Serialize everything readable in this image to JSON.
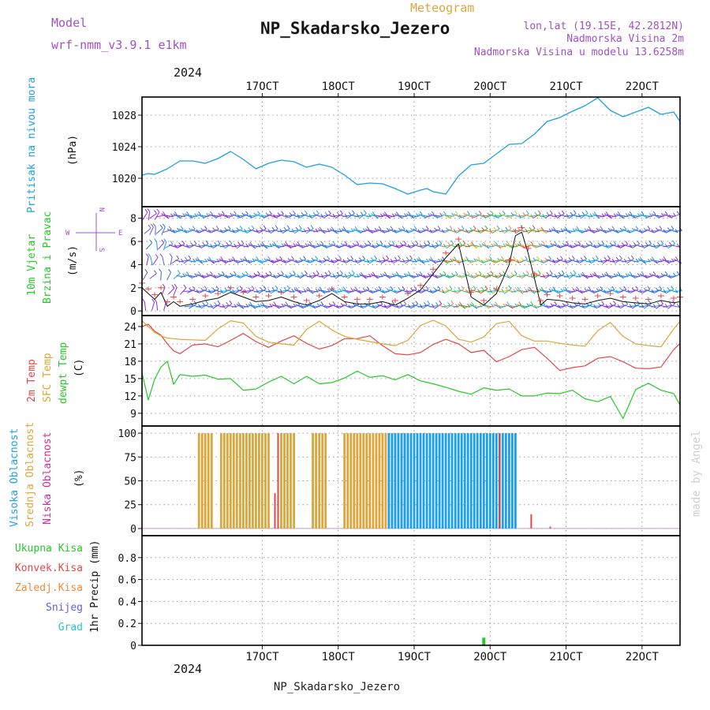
{
  "header": {
    "model_label": "Model",
    "model_value": "wrf-nmm_v3.9.1  e1km",
    "meteogram_label": "Meteogram",
    "station_title": "NP_Skadarsko_Jezero",
    "lonlat": "lon,lat (19.15E, 42.2812N)",
    "altitude": "Nadmorska Visina 2m",
    "model_altitude": "Nadmorska Visina u modelu 13.6258m",
    "year_top": "2024",
    "year_bottom": "2024",
    "station_footer": "NP_Skadarsko_Jezero",
    "watermark": "made by Angel"
  },
  "legend": {
    "pressure_title": "Pritisak na nivou mora",
    "pressure_unit": "(hPa)",
    "wind_title_1": "10m Vjetar",
    "wind_title_2": "Brzina i Pravac",
    "wind_unit": "(m/s)",
    "compass": {
      "w": "W",
      "e": "E",
      "n": "N",
      "s": "S"
    },
    "temp_2m": "2m Temp",
    "temp_sfc": "SFC Temp",
    "temp_dew": "dewpt Temp",
    "temp_unit": "(C)",
    "cloud_high": "Visoka Oblacnost",
    "cloud_mid": "Srednja Oblacnost",
    "cloud_low": "Niska Oblacnost",
    "cloud_unit": "(%)",
    "precip_total": "Ukupna Kisa",
    "precip_conv": "Konvek.Kisa",
    "precip_frz": "Zaledj.Kisa",
    "precip_snow": "Snijeg",
    "precip_grad": "Grad",
    "precip_unit": "1hr Precip (mm)"
  },
  "colors": {
    "pressure": "#1ea0e6",
    "temp_2m": "#e34848",
    "temp_sfc": "#dea53a",
    "temp_dew": "#28c828",
    "cloud_high": "#1ea0e6",
    "cloud_mid": "#dea53a",
    "cloud_low": "#e34848",
    "precip": "#28c828",
    "precip_total": "#28c828",
    "precip_conv": "#e34848",
    "precip_frz": "#ef8a3a",
    "precip_snow": "#6060e8",
    "precip_grad": "#28c8c0",
    "labels_purple": "#a050c8",
    "wind_barbs_dominant": "#7030d0"
  },
  "chart_data": [
    {
      "type": "line",
      "id": "pressure",
      "x_unit": "hours since 16 Oct 2024 00 UTC",
      "xlim": [
        -14,
        156
      ],
      "x_ticks": [
        {
          "x": 24,
          "label": "17OCT"
        },
        {
          "x": 48,
          "label": "18OCT"
        },
        {
          "x": 72,
          "label": "19OCT"
        },
        {
          "x": 96,
          "label": "20OCT"
        },
        {
          "x": 120,
          "label": "21OCT"
        },
        {
          "x": 144,
          "label": "22OCT"
        }
      ],
      "ylim": [
        1016.4,
        1030.3
      ],
      "y_ticks": [
        1020,
        1024,
        1028
      ],
      "grid": true,
      "series": [
        {
          "x": [
            -14,
            -12,
            -10,
            -6,
            -2,
            2,
            6,
            10,
            14,
            18,
            22,
            26,
            30,
            34,
            38,
            42,
            46,
            50,
            54,
            58,
            62,
            66,
            70,
            74,
            76,
            78,
            82,
            86,
            90,
            94,
            98,
            102,
            106,
            110,
            114,
            118,
            122,
            126,
            130,
            134,
            138,
            142,
            146,
            150,
            154,
            156
          ],
          "y": [
            1020.4,
            1020.6,
            1020.5,
            1021.2,
            1022.2,
            1022.2,
            1021.9,
            1022.5,
            1023.4,
            1022.4,
            1021.2,
            1021.9,
            1022.3,
            1022.1,
            1021.4,
            1021.8,
            1021.4,
            1020.4,
            1019.2,
            1019.4,
            1019.3,
            1018.7,
            1018.0,
            1018.5,
            1018.7,
            1018.3,
            1018.0,
            1020.3,
            1021.7,
            1021.9,
            1023.1,
            1024.3,
            1024.4,
            1025.6,
            1027.2,
            1027.7,
            1028.5,
            1029.2,
            1030.2,
            1028.6,
            1027.8,
            1028.4,
            1029.0,
            1028.1,
            1028.4,
            1027.2
          ]
        }
      ]
    },
    {
      "type": "barbs",
      "id": "wind",
      "xlim": [
        -14,
        156
      ],
      "ylim": [
        -0.4,
        9.0
      ],
      "y_ticks": [
        0,
        2,
        4,
        6,
        8
      ],
      "grid": true,
      "series": [
        {
          "name": "speed",
          "x": [
            -14,
            -12,
            -10,
            -8,
            -6,
            -4,
            -2,
            2,
            6,
            10,
            14,
            18,
            22,
            26,
            30,
            34,
            38,
            42,
            46,
            50,
            54,
            58,
            62,
            66,
            70,
            74,
            78,
            82,
            86,
            90,
            94,
            98,
            102,
            104,
            106,
            108,
            110,
            112,
            114,
            118,
            122,
            126,
            130,
            134,
            138,
            142,
            146,
            150,
            154,
            156
          ],
          "y": [
            2.0,
            1.5,
            1.0,
            1.6,
            0.4,
            0.8,
            0.4,
            0.6,
            0.9,
            1.1,
            1.6,
            1.2,
            0.8,
            0.9,
            1.2,
            0.8,
            0.5,
            0.9,
            1.5,
            0.8,
            0.6,
            0.6,
            0.8,
            0.5,
            1.1,
            1.8,
            3.2,
            4.6,
            5.8,
            1.2,
            0.5,
            1.5,
            4.0,
            6.5,
            6.8,
            5.0,
            2.8,
            0.5,
            1.0,
            0.9,
            0.7,
            0.6,
            0.9,
            1.1,
            0.8,
            0.7,
            0.6,
            0.9,
            0.7,
            0.8
          ]
        }
      ]
    },
    {
      "type": "line",
      "id": "temperature",
      "xlim": [
        -14,
        156
      ],
      "ylim": [
        6.8,
        25.9
      ],
      "y_ticks": [
        9,
        12,
        15,
        18,
        21,
        24
      ],
      "grid": true,
      "series": [
        {
          "name": "2m Temp",
          "x": [
            -14,
            -12,
            -10,
            -8,
            -6,
            -4,
            -2,
            2,
            6,
            10,
            14,
            18,
            22,
            26,
            30,
            34,
            38,
            42,
            46,
            50,
            54,
            58,
            62,
            66,
            70,
            74,
            78,
            82,
            86,
            90,
            94,
            98,
            102,
            106,
            110,
            114,
            118,
            122,
            126,
            130,
            134,
            138,
            142,
            146,
            150,
            154,
            156
          ],
          "y": [
            24.0,
            24.4,
            23.2,
            22.5,
            21.0,
            19.8,
            19.3,
            20.8,
            21.0,
            20.5,
            21.6,
            22.8,
            21.4,
            20.4,
            21.5,
            22.4,
            21.1,
            20.1,
            20.7,
            21.9,
            21.9,
            22.4,
            20.7,
            19.3,
            19.1,
            19.5,
            20.9,
            21.8,
            21.0,
            19.5,
            19.9,
            17.9,
            18.8,
            20.0,
            20.4,
            18.5,
            16.4,
            16.9,
            17.2,
            18.5,
            18.8,
            17.9,
            16.8,
            16.7,
            17.0,
            20.0,
            21.1
          ]
        },
        {
          "name": "SFC Temp",
          "x": [
            -14,
            -12,
            -10,
            -8,
            -6,
            -4,
            -2,
            2,
            6,
            10,
            14,
            18,
            22,
            26,
            30,
            34,
            38,
            42,
            46,
            50,
            54,
            58,
            62,
            66,
            70,
            74,
            78,
            82,
            86,
            90,
            94,
            98,
            102,
            106,
            110,
            114,
            118,
            122,
            126,
            130,
            134,
            138,
            142,
            146,
            150,
            154,
            156
          ],
          "y": [
            25.0,
            24.0,
            23.0,
            22.4,
            22.0,
            21.9,
            21.8,
            21.7,
            21.6,
            23.6,
            25.0,
            24.6,
            22.3,
            21.3,
            21.0,
            20.8,
            23.5,
            24.9,
            23.4,
            22.3,
            21.8,
            21.4,
            21.0,
            20.7,
            21.6,
            24.2,
            25.1,
            24.1,
            21.8,
            21.3,
            22.2,
            24.5,
            24.9,
            22.4,
            21.5,
            21.5,
            21.1,
            20.8,
            20.6,
            23.3,
            24.7,
            22.3,
            21.0,
            20.7,
            20.5,
            23.6,
            24.9
          ]
        },
        {
          "name": "dewpt Temp",
          "x": [
            -14,
            -12,
            -10,
            -8,
            -6,
            -4,
            -2,
            2,
            6,
            10,
            14,
            18,
            22,
            26,
            30,
            34,
            38,
            42,
            46,
            50,
            54,
            58,
            62,
            66,
            70,
            74,
            78,
            82,
            86,
            90,
            94,
            98,
            102,
            106,
            110,
            114,
            118,
            122,
            126,
            130,
            134,
            138,
            142,
            146,
            150,
            154,
            156
          ],
          "y": [
            16.0,
            11.3,
            14.9,
            17.0,
            18.0,
            14.0,
            15.7,
            15.4,
            15.6,
            14.9,
            15.0,
            13.0,
            13.2,
            14.4,
            15.4,
            14.1,
            15.4,
            14.1,
            14.3,
            15.1,
            16.3,
            15.2,
            15.5,
            14.8,
            15.7,
            14.6,
            14.1,
            13.5,
            12.8,
            12.3,
            13.4,
            13.0,
            13.2,
            12.0,
            12.0,
            12.5,
            12.4,
            13.0,
            11.5,
            11.0,
            11.9,
            8.1,
            13.1,
            14.2,
            13.0,
            12.4,
            10.4
          ]
        }
      ]
    },
    {
      "type": "bar",
      "id": "cloud",
      "xlim": [
        -14,
        156
      ],
      "ylim": [
        -7.5,
        107.5
      ],
      "y_ticks": [
        0,
        25,
        50,
        75,
        100
      ],
      "grid": true,
      "series": [
        {
          "name": "Srednja Oblacnost",
          "x_range": [
            4,
            70
          ],
          "step": 1,
          "value": 100,
          "gaps": [
            [
              9,
              10
            ],
            [
              27,
              29
            ],
            [
              35,
              39
            ],
            [
              45,
              49
            ]
          ]
        },
        {
          "name": "Visoka Oblacnost",
          "x_range": [
            64,
            104
          ],
          "step": 1,
          "value": 100,
          "gaps": []
        },
        {
          "name": "Niska Oblacnost",
          "bars": [
            {
              "x": 29,
              "y": 100
            },
            {
              "x": 28,
              "y": 37
            },
            {
              "x": 99,
              "y": 100
            },
            {
              "x": 109,
              "y": 15
            },
            {
              "x": 115,
              "y": 2
            }
          ]
        }
      ]
    },
    {
      "type": "bar",
      "id": "precip",
      "xlim": [
        -14,
        156
      ],
      "ylim": [
        0,
        1.0
      ],
      "y_ticks": [
        0,
        0.2,
        0.4,
        0.6,
        0.8
      ],
      "grid": true,
      "series": [
        {
          "name": "Ukupna Kisa",
          "bars": [
            {
              "x": 94,
              "y": 0.07
            }
          ]
        }
      ]
    }
  ]
}
